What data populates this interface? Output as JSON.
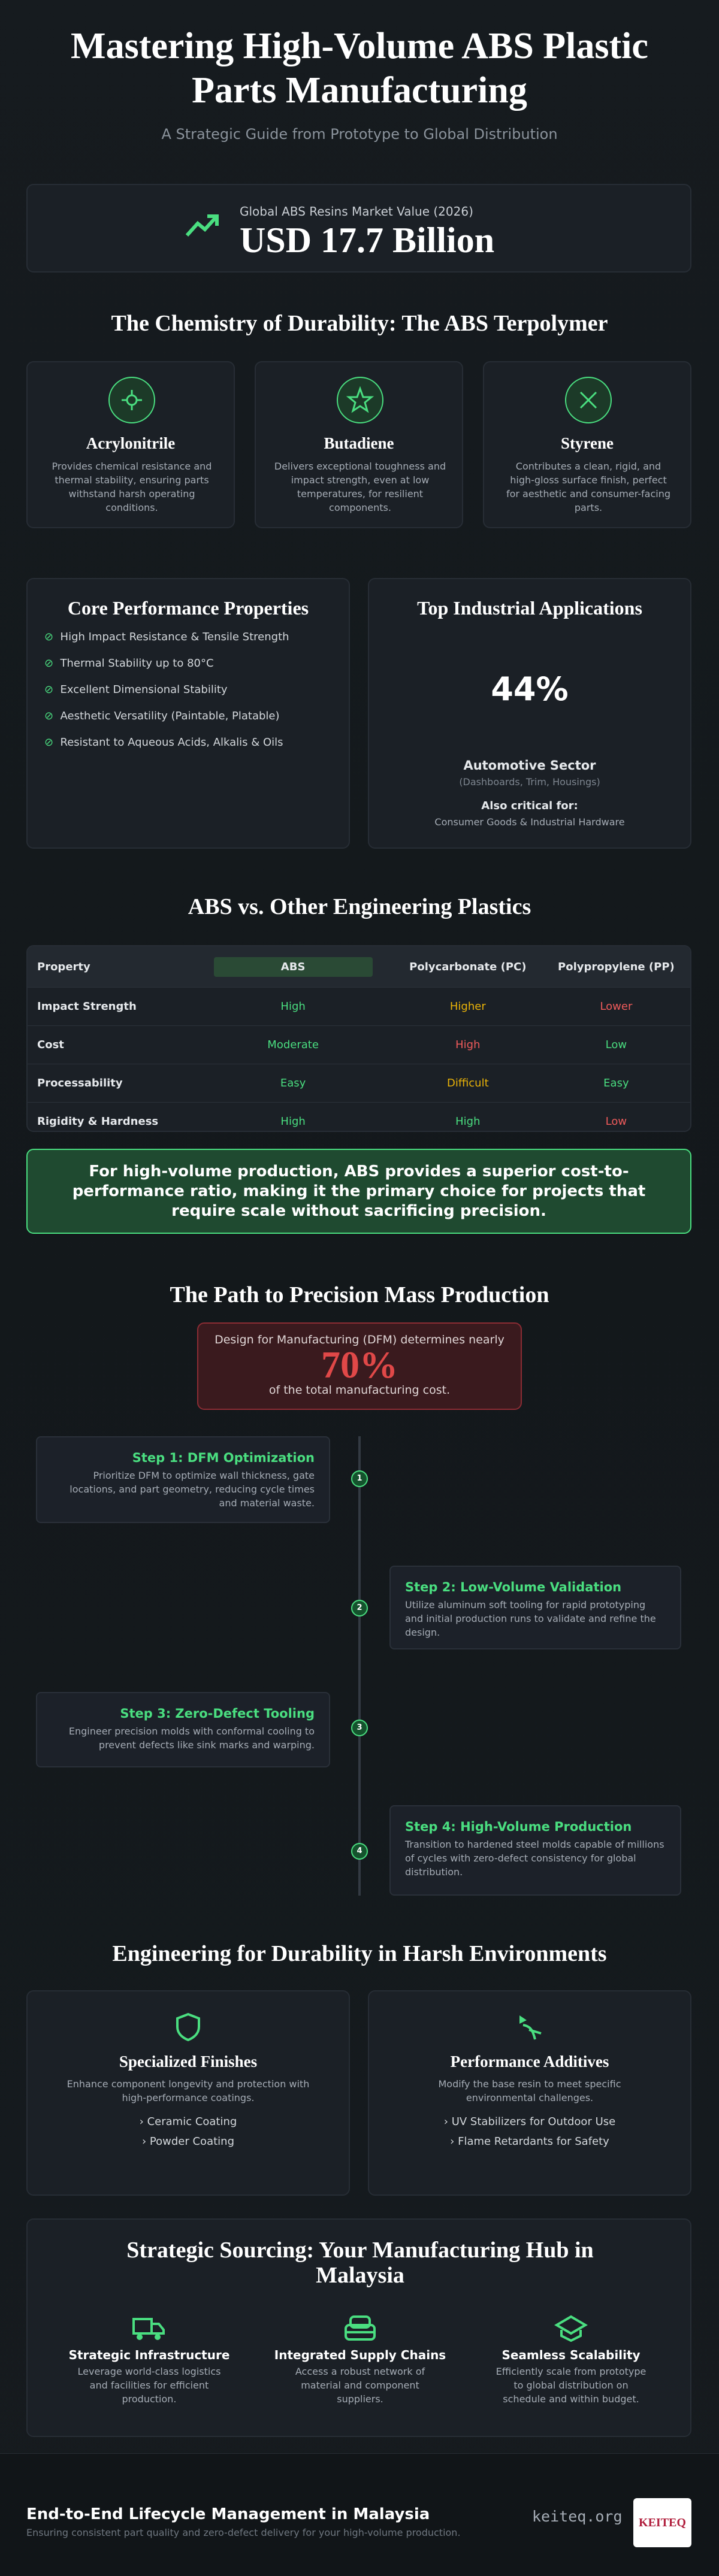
{
  "header": {
    "title": "Mastering High-Volume ABS Plastic Parts Manufacturing",
    "subtitle": "A Strategic Guide from Prototype to Global Distribution"
  },
  "market": {
    "label": "Global ABS Resins Market Value (2026)",
    "value": "USD 17.7 Billion"
  },
  "chemistry": {
    "title": "The Chemistry of Durability: The ABS Terpolymer",
    "items": [
      {
        "name": "Acrylonitrile",
        "description": "Provides chemical resistance and thermal stability, ensuring parts withstand harsh operating conditions."
      },
      {
        "name": "Butadiene",
        "description": "Delivers exceptional toughness and impact strength, even at low temperatures, for resilient components."
      },
      {
        "name": "Styrene",
        "description": "Contributes a clean, rigid, and high-gloss surface finish, perfect for aesthetic and consumer-facing parts."
      }
    ]
  },
  "properties": {
    "title": "Core Performance Properties",
    "items": [
      "High Impact Resistance & Tensile Strength",
      "Thermal Stability up to 80°C",
      "Excellent Dimensional Stability",
      "Aesthetic Versatility (Paintable, Platable)",
      "Resistant to Aqueous Acids, Alkalis & Oils"
    ]
  },
  "applications": {
    "title": "Top Industrial Applications",
    "percent": "44%",
    "sector": "Automotive Sector",
    "sector_note": "(Dashboards, Trim, Housings)",
    "also_label": "Also critical for:",
    "also_text": "Consumer Goods & Industrial Hardware"
  },
  "comparison": {
    "title": "ABS vs. Other Engineering Plastics",
    "headers": [
      "Property",
      "ABS",
      "Polycarbonate (PC)",
      "Polypropylene (PP)"
    ],
    "rows": [
      [
        "Impact Strength",
        "High",
        "Higher",
        "Lower"
      ],
      [
        "Cost",
        "Moderate",
        "High",
        "Low"
      ],
      [
        "Processability",
        "Easy",
        "Difficult",
        "Easy"
      ],
      [
        "Rigidity & Hardness",
        "High",
        "High",
        "Low"
      ]
    ]
  },
  "callout": {
    "text": "For high-volume production, ABS provides a superior cost-to-performance ratio, making it the primary choice for projects that require scale without sacrificing precision."
  },
  "path": {
    "title": "The Path to Precision Mass Production",
    "dfm": {
      "pre": "Design for Manufacturing (DFM) determines nearly",
      "value": "70%",
      "post": "of the total manufacturing cost."
    },
    "steps": [
      {
        "number": "1",
        "title": "Step 1: DFM Optimization",
        "text": "Prioritize DFM to optimize wall thickness, gate locations, and part geometry, reducing cycle times and material waste."
      },
      {
        "number": "2",
        "title": "Step 2: Low-Volume Validation",
        "text": "Utilize aluminum soft tooling for rapid prototyping and initial production runs to validate and refine the design."
      },
      {
        "number": "3",
        "title": "Step 3: Zero-Defect Tooling",
        "text": "Engineer precision molds with conformal cooling to prevent defects like sink marks and warping."
      },
      {
        "number": "4",
        "title": "Step 4: High-Volume Production",
        "text": "Transition to hardened steel molds capable of millions of cycles with zero-defect consistency for global distribution."
      }
    ]
  },
  "durability": {
    "title": "Engineering for Durability in Harsh Environments",
    "cards": [
      {
        "title": "Specialized Finishes",
        "text": "Enhance component longevity and protection with high-performance coatings.",
        "items": [
          "› Ceramic Coating",
          "› Powder Coating"
        ]
      },
      {
        "title": "Performance Additives",
        "text": "Modify the base resin to meet specific environmental challenges.",
        "items": [
          "› UV Stabilizers for Outdoor Use",
          "› Flame Retardants for Safety"
        ]
      }
    ]
  },
  "sourcing": {
    "title": "Strategic Sourcing: Your Manufacturing Hub in Malaysia",
    "items": [
      {
        "title": "Strategic Infrastructure",
        "text": "Leverage world-class logistics and facilities for efficient production."
      },
      {
        "title": "Integrated Supply Chains",
        "text": "Access a robust network of material and component suppliers."
      },
      {
        "title": "Seamless Scalability",
        "text": "Efficiently scale from prototype to global distribution on schedule and within budget."
      }
    ]
  },
  "footer": {
    "title": "End-to-End Lifecycle Management in Malaysia",
    "subtitle": "Ensuring consistent part quality and zero-defect delivery for your high-volume production.",
    "site": "keiteq.org",
    "logo": "KEITEQ"
  }
}
